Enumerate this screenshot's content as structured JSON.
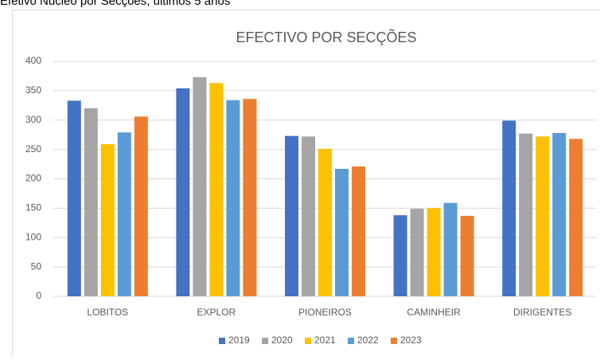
{
  "heading": "Efetivo Núcleo por Secções, últimos 5 anos",
  "chart_data": {
    "type": "bar",
    "title": "EFECTIVO POR SECÇÕES",
    "categories": [
      "LOBITOS",
      "EXPLOR",
      "PIONEIROS",
      "CAMINHEIR",
      "DIRIGENTES"
    ],
    "series": [
      {
        "name": "2019",
        "color": "#4472c4",
        "values": [
          333,
          354,
          273,
          138,
          299
        ]
      },
      {
        "name": "2020",
        "color": "#a5a5a5",
        "values": [
          320,
          373,
          272,
          149,
          277
        ]
      },
      {
        "name": "2021",
        "color": "#ffc000",
        "values": [
          259,
          363,
          251,
          150,
          272
        ]
      },
      {
        "name": "2022",
        "color": "#5b9bd5",
        "values": [
          279,
          334,
          217,
          159,
          278
        ]
      },
      {
        "name": "2023",
        "color": "#ed7d31",
        "values": [
          306,
          336,
          221,
          137,
          268
        ]
      }
    ],
    "ylim": [
      0,
      400
    ],
    "yticks": [
      0,
      50,
      100,
      150,
      200,
      250,
      300,
      350,
      400
    ],
    "grid": true,
    "legend": "bottom"
  }
}
